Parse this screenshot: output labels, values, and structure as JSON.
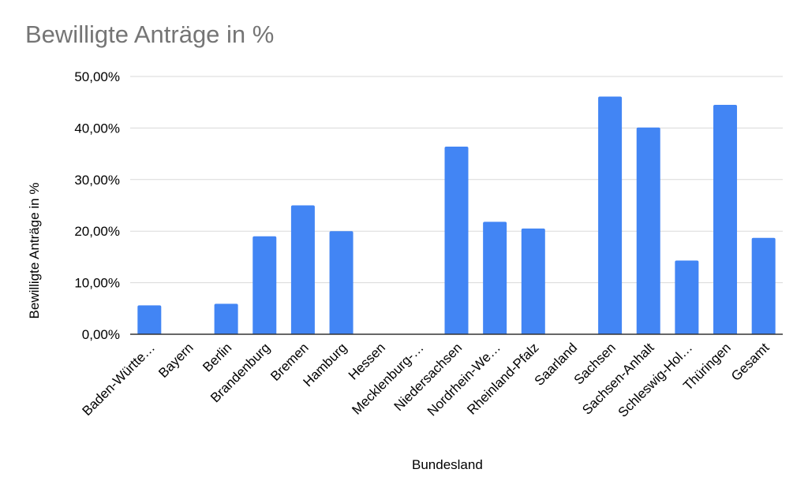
{
  "chart_data": {
    "type": "bar",
    "title": "Bewilligte Anträge in %",
    "xlabel": "Bundesland",
    "ylabel": "Bewilligte Anträge in %",
    "categories": [
      "Baden-Württe…",
      "Bayern",
      "Berlin",
      "Brandenburg",
      "Bremen",
      "Hamburg",
      "Hessen",
      "Mecklenburg-…",
      "Niedersachsen",
      "Nordrhein-We…",
      "Rheinland-Pfalz",
      "Saarland",
      "Sachsen",
      "Sachsen-Anhalt",
      "Schleswig-Hol…",
      "Thüringen",
      "Gesamt"
    ],
    "values": [
      5.6,
      0,
      5.9,
      19.0,
      25.0,
      20.0,
      0,
      0,
      36.4,
      21.8,
      20.5,
      0,
      46.1,
      40.1,
      14.3,
      44.5,
      18.7
    ],
    "ylim": [
      0,
      50
    ],
    "yticks": [
      0,
      10,
      20,
      30,
      40,
      50
    ],
    "ytick_labels": [
      "0,00%",
      "10,00%",
      "20,00%",
      "30,00%",
      "40,00%",
      "50,00%"
    ],
    "bar_color": "#4285f4",
    "grid": true
  }
}
